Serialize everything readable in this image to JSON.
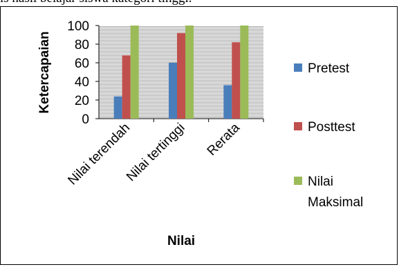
{
  "header_text": "is hasil belajar siswa kategori tinggi.",
  "chart_data": {
    "type": "bar",
    "categories": [
      "Nilai terendah",
      "Nilai tertinggi",
      "Rerata"
    ],
    "series": [
      {
        "name": "Pretest",
        "values": [
          24,
          60,
          36
        ],
        "color": "#4a7ebb"
      },
      {
        "name": "Posttest",
        "values": [
          68,
          92,
          82
        ],
        "color": "#c0504d"
      },
      {
        "name": "Nilai Maksimal",
        "values": [
          100,
          100,
          100
        ],
        "color": "#9bbb59"
      }
    ],
    "legend_labels": [
      [
        "Pretest"
      ],
      [
        "Posttest"
      ],
      [
        "Nilai",
        "Maksimal"
      ]
    ],
    "xlabel": "Nilai",
    "ylabel": "Ketercapaian",
    "ylim": [
      0,
      100
    ],
    "yticks": [
      0,
      20,
      40,
      60,
      80,
      100
    ],
    "grid": "dense horizontal hatch",
    "legend_position": "right"
  }
}
